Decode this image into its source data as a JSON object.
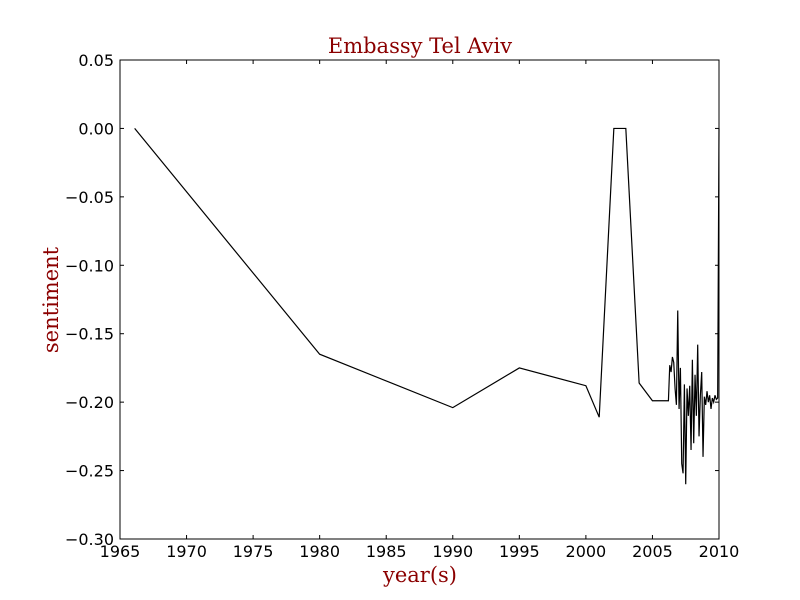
{
  "chart_data": {
    "type": "line",
    "title": "Embassy Tel Aviv",
    "xlabel": "year(s)",
    "ylabel": "sentiment",
    "xlim": [
      1965,
      2010
    ],
    "ylim": [
      -0.3,
      0.05
    ],
    "x_ticks": [
      "1965",
      "1970",
      "1975",
      "1980",
      "1985",
      "1990",
      "1995",
      "2000",
      "2005",
      "2010"
    ],
    "y_ticks": [
      "0.05",
      "0.00",
      "−0.05",
      "−0.10",
      "−0.15",
      "−0.20",
      "−0.25",
      "−0.30"
    ],
    "grid": false,
    "colors": {
      "title": "#8b0000",
      "axis_labels": "#8b0000",
      "line": "#000000"
    },
    "series": [
      {
        "x": [
          1966.1,
          1980.0,
          1990.0,
          1995.0,
          2000.0,
          2001.0,
          2002.1,
          2003.0,
          2004.0,
          2005.0,
          2006.2,
          2006.3,
          2006.4,
          2006.5,
          2006.6,
          2006.7,
          2006.8,
          2006.9,
          2007.0,
          2007.1,
          2007.2,
          2007.3,
          2007.4,
          2007.5,
          2007.6,
          2007.7,
          2007.8,
          2007.9,
          2008.0,
          2008.1,
          2008.2,
          2008.3,
          2008.4,
          2008.5,
          2008.6,
          2008.7,
          2008.8,
          2008.9,
          2009.0,
          2009.1,
          2009.2,
          2009.3,
          2009.4,
          2009.5,
          2009.6,
          2009.7,
          2009.8,
          2009.9,
          2010.0
        ],
        "y": [
          0.0,
          -0.165,
          -0.204,
          -0.175,
          -0.188,
          -0.211,
          0.0,
          0.0,
          -0.186,
          -0.199,
          -0.199,
          -0.173,
          -0.178,
          -0.167,
          -0.171,
          -0.19,
          -0.202,
          -0.133,
          -0.205,
          -0.175,
          -0.245,
          -0.252,
          -0.187,
          -0.26,
          -0.19,
          -0.21,
          -0.188,
          -0.235,
          -0.169,
          -0.23,
          -0.18,
          -0.21,
          -0.158,
          -0.225,
          -0.195,
          -0.178,
          -0.24,
          -0.196,
          -0.202,
          -0.192,
          -0.2,
          -0.195,
          -0.205,
          -0.197,
          -0.2,
          -0.195,
          -0.198,
          -0.197,
          0.0
        ]
      }
    ]
  }
}
